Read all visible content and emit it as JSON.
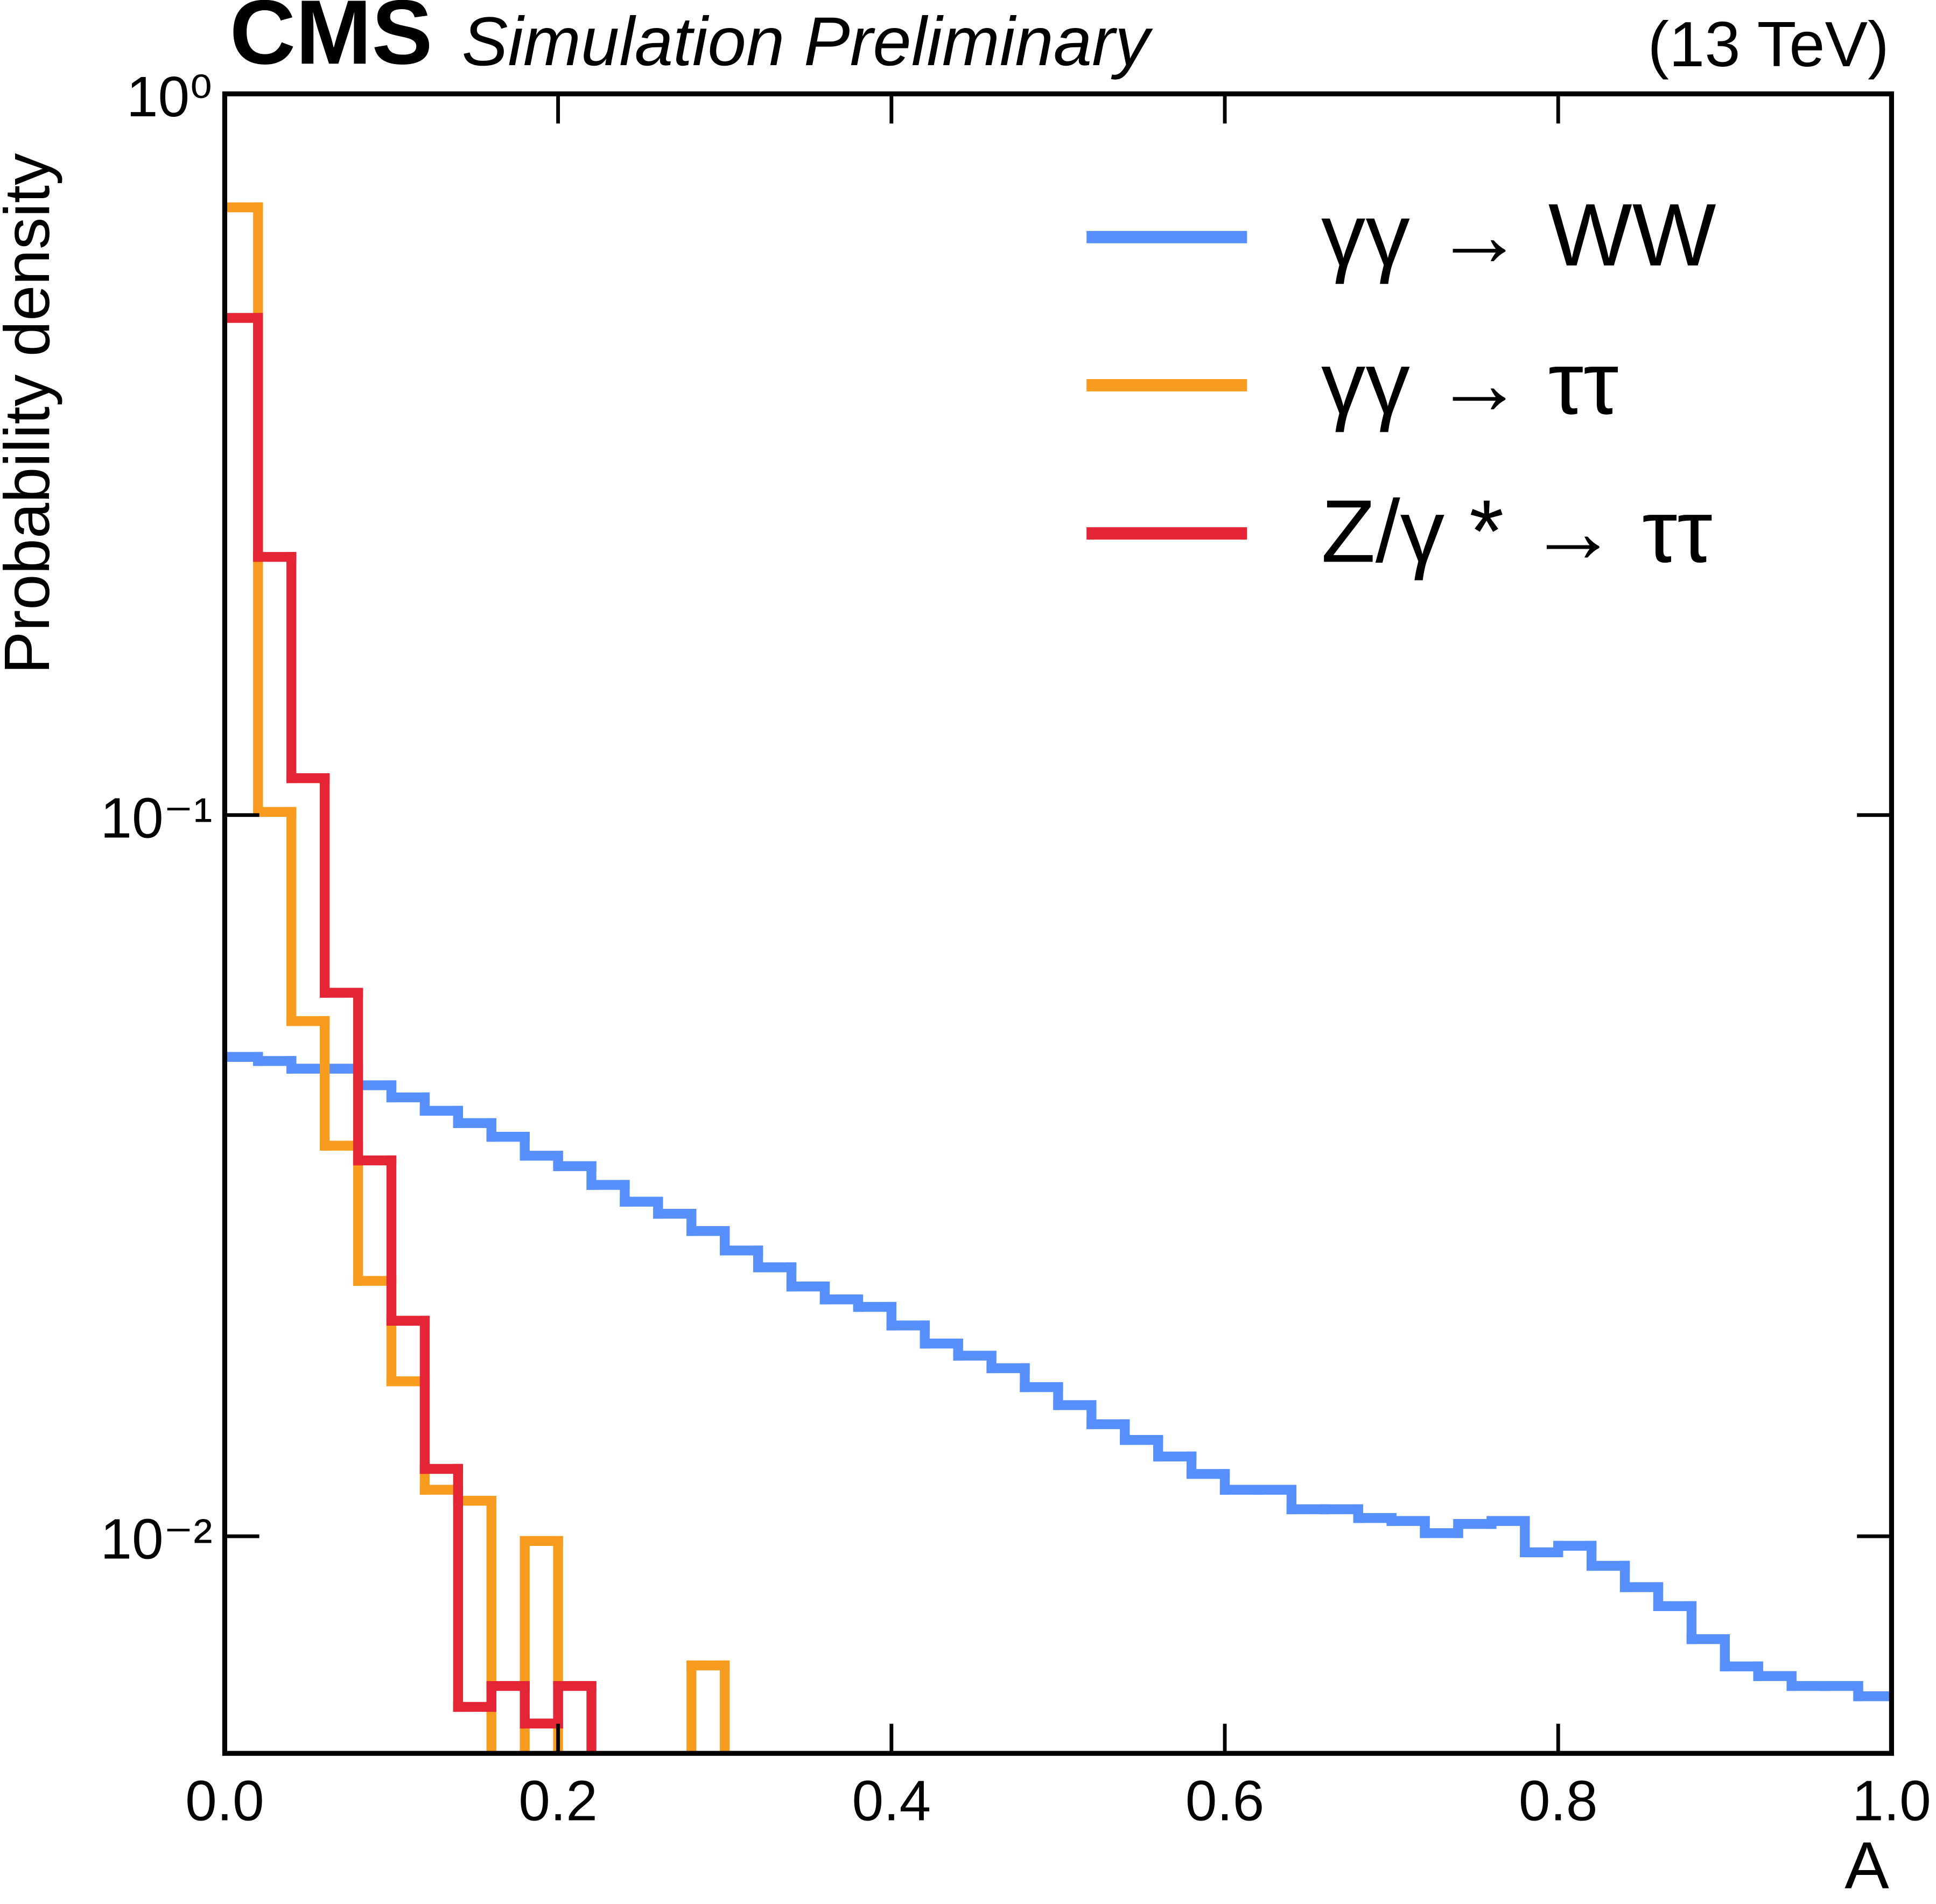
{
  "chart_data": {
    "type": "histogram",
    "title": "CMS",
    "subtitle": "Simulation Preliminary",
    "annotation": "(13 TeV)",
    "xlabel": "A",
    "ylabel": "Probability density",
    "log_y": true,
    "legend": "upper right",
    "xlim": [
      0,
      1
    ],
    "ylim": [
      0.005,
      1
    ],
    "xticks": [
      {
        "value": 0,
        "label": "0.0"
      },
      0.2,
      0.4,
      0.6,
      0.8,
      {
        "value": 1,
        "label": "1.0"
      }
    ],
    "yticks": [
      {
        "value": 0.01,
        "label": "10⁻²"
      },
      {
        "value": 0.1,
        "label": "10⁻¹"
      },
      {
        "value": 1,
        "label": "10⁰"
      }
    ],
    "bins": [
      0,
      0.02,
      0.04,
      0.06,
      0.08,
      0.1,
      0.12,
      0.14,
      0.16,
      0.18,
      0.2,
      0.22,
      0.24,
      0.26,
      0.28,
      0.3,
      0.32,
      0.34,
      0.36,
      0.38,
      0.4,
      0.42,
      0.44,
      0.46,
      0.48,
      0.5,
      0.52,
      0.54,
      0.56,
      0.58,
      0.6,
      0.62,
      0.64,
      0.66,
      0.68,
      0.7,
      0.72,
      0.74,
      0.76,
      0.78,
      0.8,
      0.82,
      0.84,
      0.86,
      0.88,
      0.9,
      0.92,
      0.94,
      0.96,
      0.98,
      1
    ],
    "series": [
      {
        "name": "γγ → WW",
        "color": "#5790fc",
        "values": [
          0.0462,
          0.0456,
          0.0445,
          0.0445,
          0.0422,
          0.0406,
          0.0389,
          0.0374,
          0.0358,
          0.0337,
          0.0326,
          0.0307,
          0.0291,
          0.028,
          0.0265,
          0.0249,
          0.0236,
          0.0222,
          0.0213,
          0.0208,
          0.0196,
          0.0185,
          0.0178,
          0.0171,
          0.0161,
          0.0152,
          0.0143,
          0.0136,
          0.0129,
          0.0122,
          0.0116,
          0.0116,
          0.0109,
          0.0109,
          0.0106,
          0.0105,
          0.0101,
          0.0104,
          0.0105,
          0.0095,
          0.0097,
          0.0091,
          0.0085,
          0.008,
          0.0072,
          0.0066,
          0.0064,
          0.0062,
          0.0062,
          0.006
        ]
      },
      {
        "name": "γγ → ττ",
        "color": "#f89c20",
        "values": [
          0.696,
          0.101,
          0.0518,
          0.0348,
          0.0226,
          0.0164,
          0.0116,
          0.0112,
          null,
          0.00985,
          null,
          null,
          null,
          null,
          0.00662,
          null,
          null,
          null,
          null,
          null,
          null,
          null,
          null,
          null,
          null,
          null,
          null,
          null,
          null,
          null,
          null,
          null,
          null,
          null,
          null,
          null,
          null,
          null,
          null,
          null,
          null,
          null,
          null,
          null,
          null,
          null,
          null,
          null,
          null,
          null
        ]
      },
      {
        "name": "Z/γ * → ττ",
        "color": "#e42536",
        "values": [
          0.489,
          0.228,
          0.1125,
          0.0567,
          0.0332,
          0.0199,
          0.0124,
          0.0058,
          0.0062,
          0.0055,
          0.0062,
          null,
          null,
          null,
          null,
          null,
          null,
          null,
          null,
          null,
          null,
          null,
          null,
          null,
          null,
          null,
          null,
          null,
          null,
          null,
          null,
          null,
          null,
          null,
          null,
          null,
          null,
          null,
          null,
          null,
          null,
          null,
          null,
          null,
          null,
          null,
          null,
          null,
          null,
          null
        ]
      }
    ]
  }
}
